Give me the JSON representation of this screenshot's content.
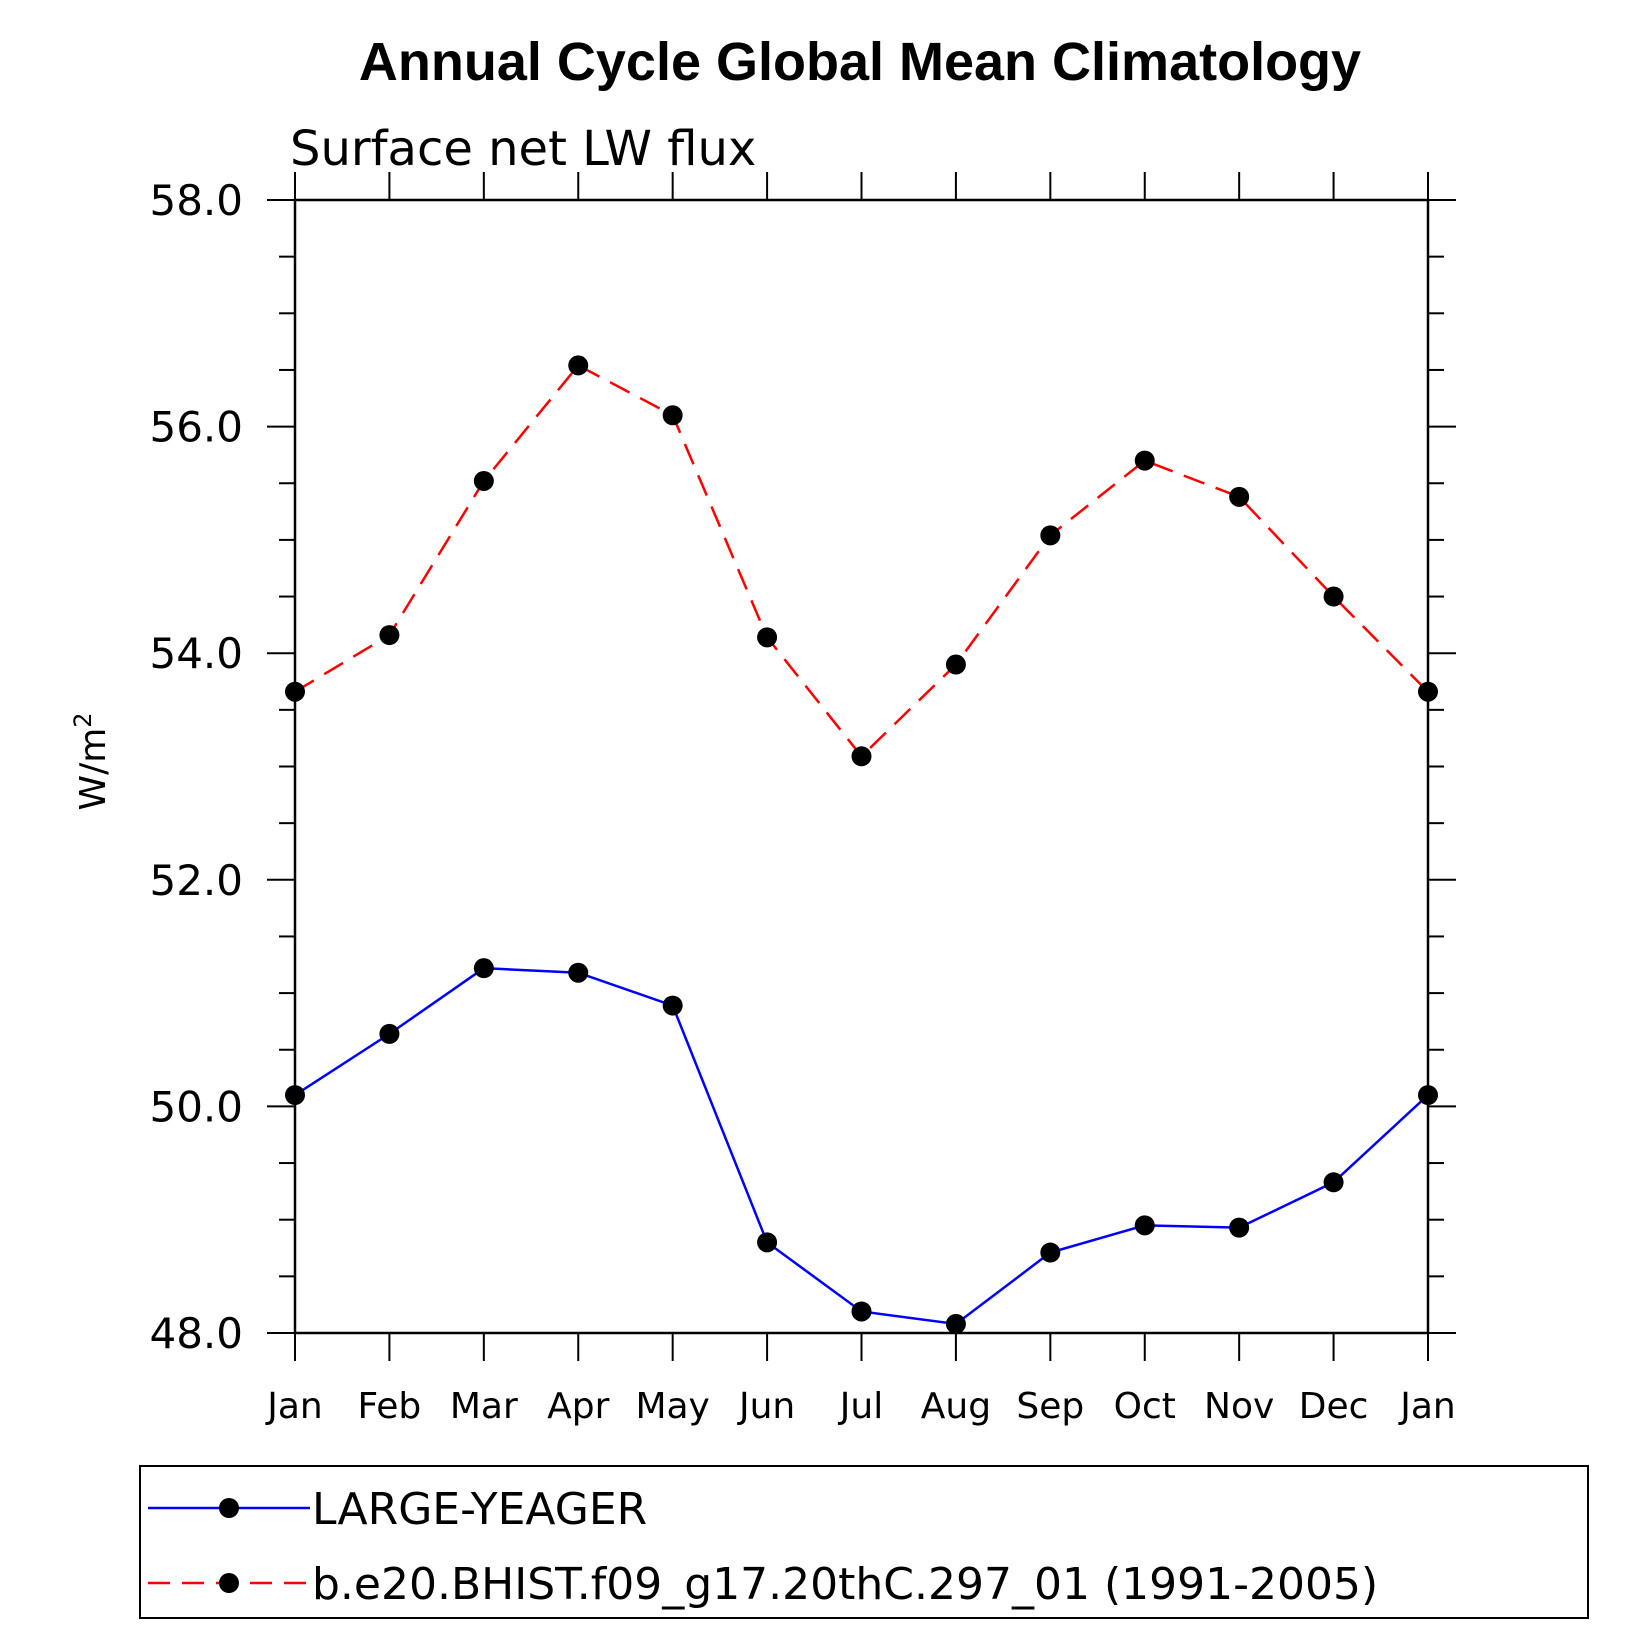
{
  "chart_data": {
    "type": "line",
    "title": "Annual Cycle Global Mean Climatology",
    "subtitle": "Surface net LW flux",
    "ylabel": "W/m",
    "ylabel_superscript": "2",
    "xlabel": "",
    "categories": [
      "Jan",
      "Feb",
      "Mar",
      "Apr",
      "May",
      "Jun",
      "Jul",
      "Aug",
      "Sep",
      "Oct",
      "Nov",
      "Dec",
      "Jan"
    ],
    "ylim": [
      48.0,
      58.0
    ],
    "yticks": [
      {
        "value": 48.0,
        "label": "48.0"
      },
      {
        "value": 50.0,
        "label": "50.0"
      },
      {
        "value": 52.0,
        "label": "52.0"
      },
      {
        "value": 54.0,
        "label": "54.0"
      },
      {
        "value": 56.0,
        "label": "56.0"
      },
      {
        "value": 58.0,
        "label": "58.0"
      }
    ],
    "yminor_step": 0.5,
    "grid": false,
    "legend_position": "bottom",
    "series": [
      {
        "name": "LARGE-YEAGER",
        "color": "#0000ff",
        "dash": "solid",
        "marker": "filled-circle",
        "values": [
          50.1,
          50.64,
          51.22,
          51.18,
          50.89,
          48.8,
          48.19,
          48.08,
          48.71,
          48.95,
          48.93,
          49.33,
          50.1
        ]
      },
      {
        "name": "b.e20.BHIST.f09_g17.20thC.297_01 (1991-2005)",
        "color": "#ff0000",
        "dash": "dashed",
        "marker": "filled-circle",
        "values": [
          53.66,
          54.16,
          55.52,
          56.54,
          56.1,
          54.14,
          53.09,
          53.9,
          55.04,
          55.7,
          55.38,
          54.5,
          53.66
        ]
      }
    ]
  }
}
